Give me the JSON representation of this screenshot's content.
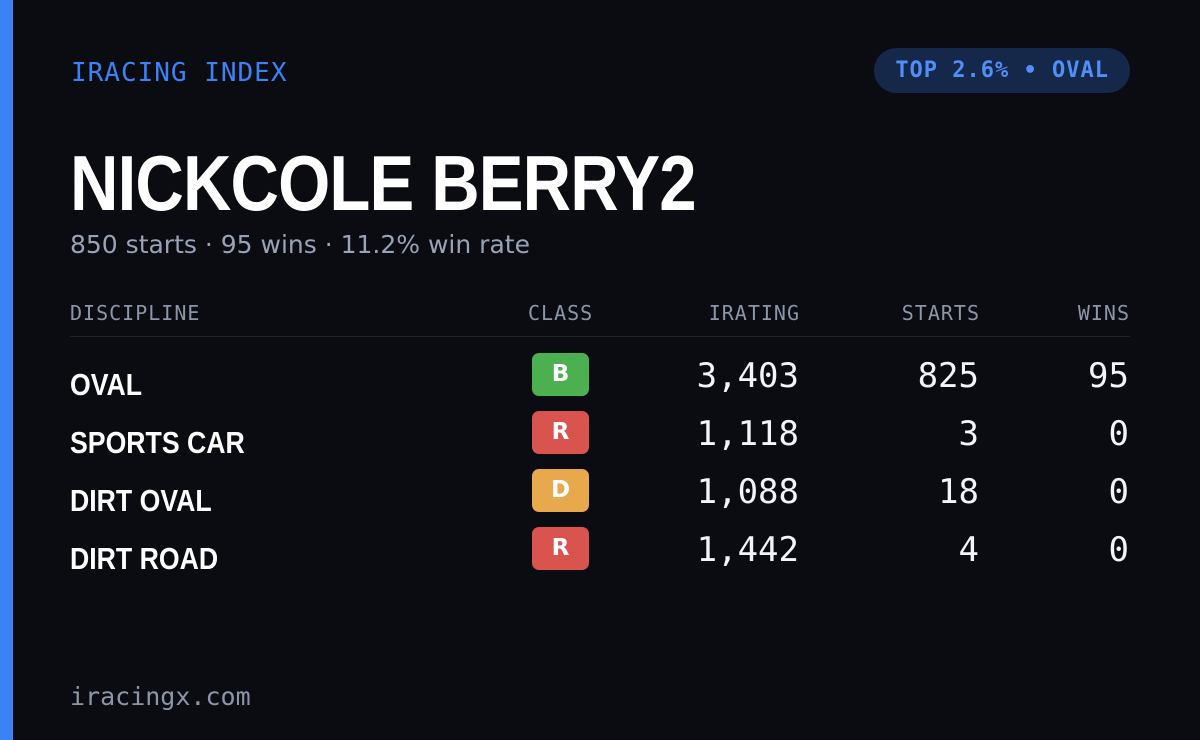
{
  "brand": "IRACING INDEX",
  "rank_badge": "TOP 2.6% • OVAL",
  "driver": {
    "name": "NICKCOLE BERRY2",
    "summary": "850 starts · 95 wins · 11.2% win rate"
  },
  "table": {
    "headers": {
      "discipline": "DISCIPLINE",
      "class": "CLASS",
      "irating": "IRATING",
      "starts": "STARTS",
      "wins": "WINS"
    },
    "rows": [
      {
        "discipline": "OVAL",
        "class": "B",
        "class_color": "#4caf50",
        "irating": "3,403",
        "starts": "825",
        "wins": "95"
      },
      {
        "discipline": "SPORTS CAR",
        "class": "R",
        "class_color": "#d9534f",
        "irating": "1,118",
        "starts": "3",
        "wins": "0"
      },
      {
        "discipline": "DIRT OVAL",
        "class": "D",
        "class_color": "#e8a84c",
        "irating": "1,088",
        "starts": "18",
        "wins": "0"
      },
      {
        "discipline": "DIRT ROAD",
        "class": "R",
        "class_color": "#d9534f",
        "irating": "1,442",
        "starts": "4",
        "wins": "0"
      }
    ]
  },
  "footer": "iracingx.com",
  "colors": {
    "background": "#0a0c12",
    "accent": "#3b82f6",
    "pill_background": "#16284a"
  }
}
